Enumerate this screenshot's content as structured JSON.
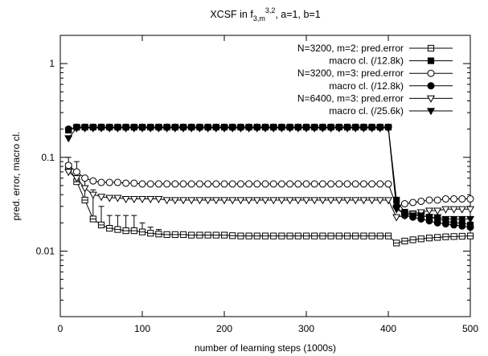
{
  "chart_data": {
    "type": "line",
    "title": {
      "prefix": "XCSF in f",
      "subscript": "3,m",
      "superscript": "3,2",
      "suffix": ", a=1, b=1"
    },
    "xlabel": "number of learning steps (1000s)",
    "ylabel": "pred. error, macro cl.",
    "xlim": [
      0,
      500
    ],
    "ylim": [
      0.002,
      2
    ],
    "yscale": "log",
    "xticks": [
      0,
      100,
      200,
      300,
      400,
      500
    ],
    "yticks": [
      0.01,
      0.1,
      1
    ],
    "ytick_labels": [
      "0.01",
      "0.1",
      "1"
    ],
    "grid": false,
    "legend_position": "top-right",
    "series": [
      {
        "name": "N=3200, m=2: pred.error",
        "marker": "square-open",
        "x": [
          10,
          20,
          30,
          40,
          50,
          60,
          70,
          80,
          90,
          100,
          110,
          120,
          130,
          140,
          150,
          160,
          170,
          180,
          190,
          200,
          210,
          220,
          230,
          240,
          250,
          260,
          270,
          280,
          290,
          300,
          310,
          320,
          330,
          340,
          350,
          360,
          370,
          380,
          390,
          400,
          410,
          420,
          430,
          440,
          450,
          460,
          470,
          480,
          490,
          500
        ],
        "y": [
          0.08,
          0.055,
          0.035,
          0.022,
          0.019,
          0.0175,
          0.017,
          0.0165,
          0.0165,
          0.016,
          0.0155,
          0.0152,
          0.015,
          0.015,
          0.015,
          0.0148,
          0.0148,
          0.0148,
          0.0148,
          0.0148,
          0.0146,
          0.0145,
          0.0145,
          0.0145,
          0.0145,
          0.0145,
          0.0145,
          0.0145,
          0.0145,
          0.0145,
          0.0145,
          0.0145,
          0.0145,
          0.0145,
          0.0145,
          0.0145,
          0.0145,
          0.0145,
          0.0145,
          0.0145,
          0.0122,
          0.0128,
          0.0132,
          0.0135,
          0.0138,
          0.014,
          0.0142,
          0.0143,
          0.0144,
          0.0145
        ],
        "error_upper": [
          0.1,
          0.09,
          0.06,
          0.045,
          0.03,
          0.024,
          0.024,
          0.024,
          0.024,
          0.02,
          0.018,
          0.017,
          0.016,
          0.016,
          0.016
        ]
      },
      {
        "name": "macro cl. (/12.8k)",
        "marker": "square-filled",
        "x": [
          10,
          20,
          30,
          40,
          50,
          60,
          70,
          80,
          90,
          100,
          110,
          120,
          130,
          140,
          150,
          160,
          170,
          180,
          190,
          200,
          210,
          220,
          230,
          240,
          250,
          260,
          270,
          280,
          290,
          300,
          310,
          320,
          330,
          340,
          350,
          360,
          370,
          380,
          390,
          400,
          410,
          420,
          430,
          440,
          450,
          460,
          470,
          480,
          490,
          500
        ],
        "y": [
          0.195,
          0.21,
          0.21,
          0.21,
          0.21,
          0.21,
          0.21,
          0.21,
          0.21,
          0.21,
          0.21,
          0.21,
          0.21,
          0.21,
          0.21,
          0.21,
          0.21,
          0.21,
          0.21,
          0.21,
          0.21,
          0.21,
          0.21,
          0.21,
          0.21,
          0.21,
          0.21,
          0.21,
          0.21,
          0.21,
          0.21,
          0.21,
          0.21,
          0.21,
          0.21,
          0.21,
          0.21,
          0.21,
          0.21,
          0.21,
          0.035,
          0.026,
          0.025,
          0.024,
          0.023,
          0.022,
          0.021,
          0.02,
          0.02,
          0.019
        ]
      },
      {
        "name": "N=3200, m=3: pred.error",
        "marker": "circle-open",
        "x": [
          10,
          20,
          30,
          40,
          50,
          60,
          70,
          80,
          90,
          100,
          110,
          120,
          130,
          140,
          150,
          160,
          170,
          180,
          190,
          200,
          210,
          220,
          230,
          240,
          250,
          260,
          270,
          280,
          290,
          300,
          310,
          320,
          330,
          340,
          350,
          360,
          370,
          380,
          390,
          400,
          410,
          420,
          430,
          440,
          450,
          460,
          470,
          480,
          490,
          500
        ],
        "y": [
          0.082,
          0.07,
          0.06,
          0.056,
          0.054,
          0.054,
          0.054,
          0.053,
          0.053,
          0.052,
          0.052,
          0.052,
          0.052,
          0.052,
          0.052,
          0.052,
          0.052,
          0.052,
          0.052,
          0.052,
          0.052,
          0.052,
          0.052,
          0.052,
          0.052,
          0.052,
          0.052,
          0.052,
          0.052,
          0.052,
          0.052,
          0.052,
          0.052,
          0.052,
          0.052,
          0.052,
          0.052,
          0.052,
          0.052,
          0.052,
          0.03,
          0.032,
          0.033,
          0.034,
          0.035,
          0.035,
          0.036,
          0.036,
          0.036,
          0.036
        ]
      },
      {
        "name": "macro cl. (/12.8k)",
        "marker": "circle-filled",
        "x": [
          10,
          20,
          30,
          40,
          50,
          60,
          70,
          80,
          90,
          100,
          110,
          120,
          130,
          140,
          150,
          160,
          170,
          180,
          190,
          200,
          210,
          220,
          230,
          240,
          250,
          260,
          270,
          280,
          290,
          300,
          310,
          320,
          330,
          340,
          350,
          360,
          370,
          380,
          390,
          400,
          410,
          420,
          430,
          440,
          450,
          460,
          470,
          480,
          490,
          500
        ],
        "y": [
          0.2,
          0.21,
          0.21,
          0.21,
          0.21,
          0.21,
          0.21,
          0.21,
          0.21,
          0.21,
          0.21,
          0.21,
          0.21,
          0.21,
          0.21,
          0.21,
          0.21,
          0.21,
          0.21,
          0.21,
          0.21,
          0.21,
          0.21,
          0.21,
          0.21,
          0.21,
          0.21,
          0.21,
          0.21,
          0.21,
          0.21,
          0.21,
          0.21,
          0.21,
          0.21,
          0.21,
          0.21,
          0.21,
          0.21,
          0.21,
          0.03,
          0.024,
          0.023,
          0.022,
          0.021,
          0.02,
          0.0195,
          0.019,
          0.0185,
          0.018
        ]
      },
      {
        "name": "N=6400, m=3: pred.error",
        "marker": "triangle-down-open",
        "x": [
          10,
          20,
          30,
          40,
          50,
          60,
          70,
          80,
          90,
          100,
          110,
          120,
          130,
          140,
          150,
          160,
          170,
          180,
          190,
          200,
          210,
          220,
          230,
          240,
          250,
          260,
          270,
          280,
          290,
          300,
          310,
          320,
          330,
          340,
          350,
          360,
          370,
          380,
          390,
          400,
          410,
          420,
          430,
          440,
          450,
          460,
          470,
          480,
          490,
          500
        ],
        "y": [
          0.07,
          0.06,
          0.047,
          0.04,
          0.038,
          0.037,
          0.037,
          0.036,
          0.036,
          0.036,
          0.036,
          0.036,
          0.035,
          0.035,
          0.035,
          0.035,
          0.035,
          0.035,
          0.035,
          0.035,
          0.035,
          0.035,
          0.035,
          0.035,
          0.035,
          0.035,
          0.035,
          0.035,
          0.035,
          0.035,
          0.035,
          0.035,
          0.035,
          0.035,
          0.035,
          0.035,
          0.035,
          0.035,
          0.035,
          0.035,
          0.023,
          0.024,
          0.025,
          0.026,
          0.027,
          0.027,
          0.028,
          0.028,
          0.028,
          0.028
        ]
      },
      {
        "name": "macro cl. (/25.6k)",
        "marker": "triangle-down-filled",
        "x": [
          10,
          20,
          30,
          40,
          50,
          60,
          70,
          80,
          90,
          100,
          110,
          120,
          130,
          140,
          150,
          160,
          170,
          180,
          190,
          200,
          210,
          220,
          230,
          240,
          250,
          260,
          270,
          280,
          290,
          300,
          310,
          320,
          330,
          340,
          350,
          360,
          370,
          380,
          390,
          400,
          410,
          420,
          430,
          440,
          450,
          460,
          470,
          480,
          490,
          500
        ],
        "y": [
          0.16,
          0.205,
          0.205,
          0.205,
          0.205,
          0.205,
          0.205,
          0.205,
          0.205,
          0.205,
          0.205,
          0.205,
          0.205,
          0.205,
          0.205,
          0.205,
          0.205,
          0.205,
          0.205,
          0.205,
          0.205,
          0.205,
          0.205,
          0.205,
          0.205,
          0.205,
          0.205,
          0.205,
          0.205,
          0.205,
          0.205,
          0.205,
          0.205,
          0.205,
          0.205,
          0.205,
          0.205,
          0.205,
          0.205,
          0.205,
          0.028,
          0.025,
          0.024,
          0.024,
          0.023,
          0.023,
          0.022,
          0.022,
          0.022,
          0.022
        ]
      }
    ]
  }
}
